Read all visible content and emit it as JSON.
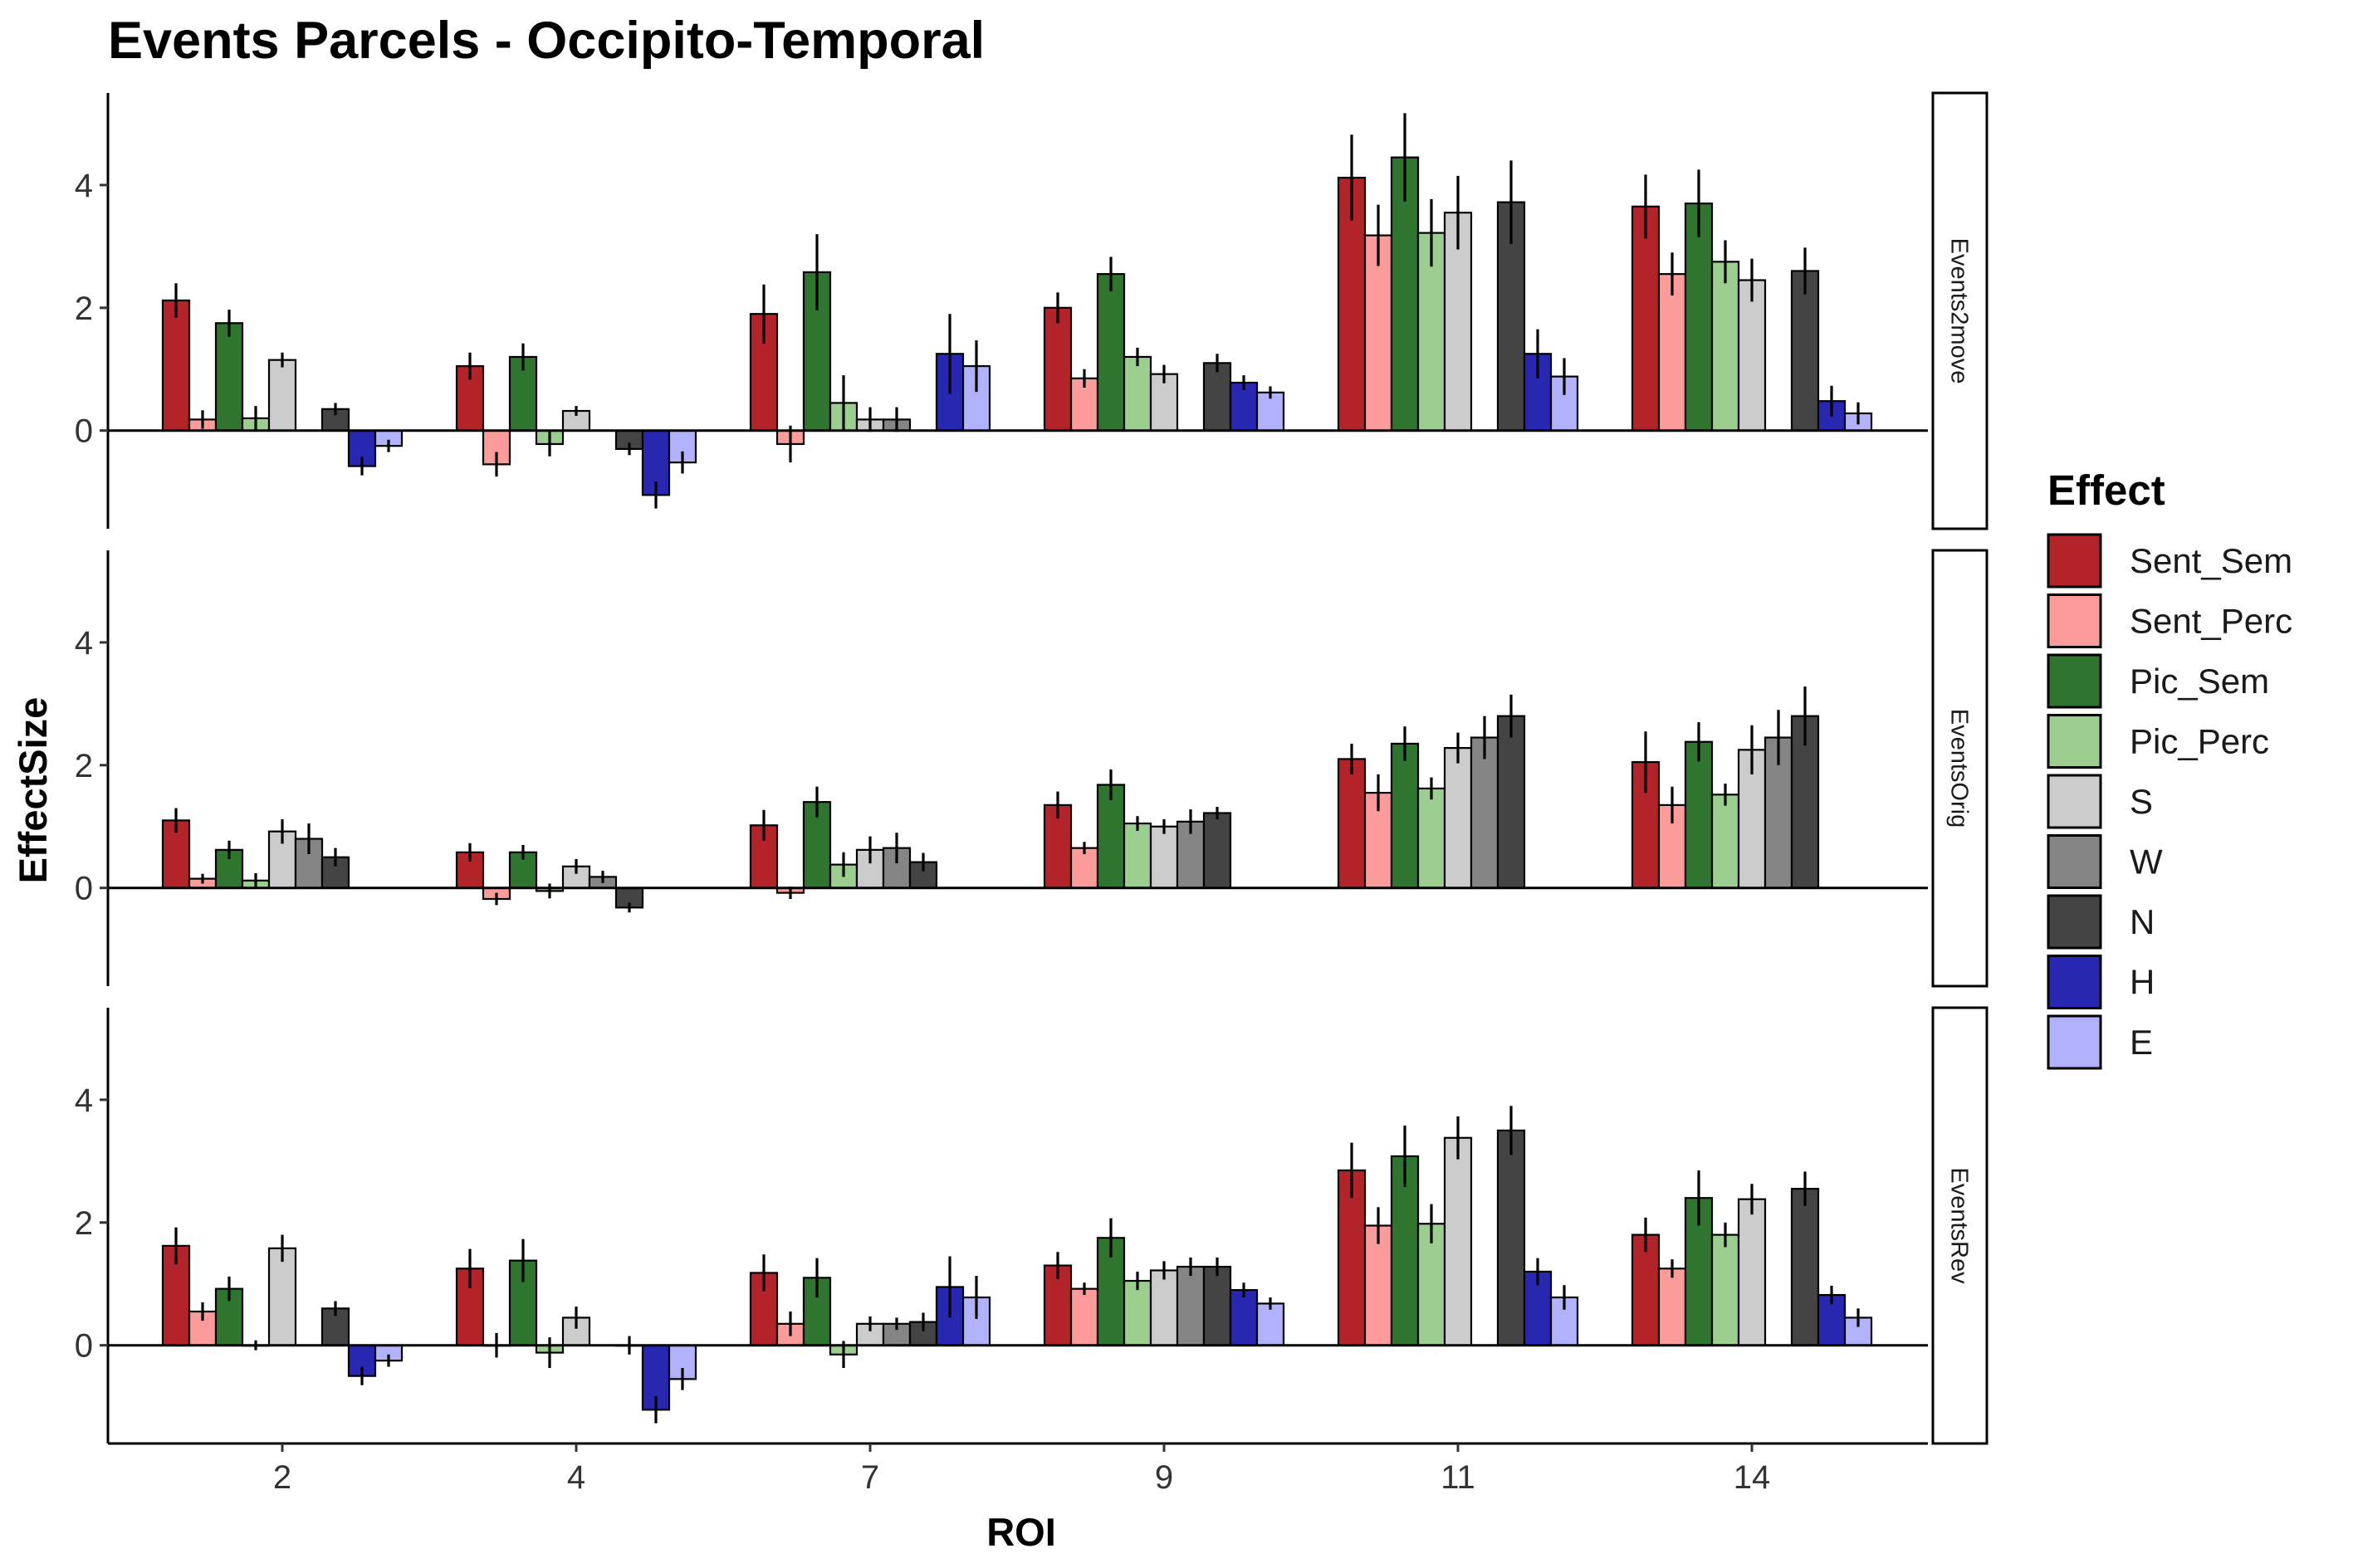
{
  "chart_data": {
    "type": "bar",
    "title": "Events Parcels - Occipito-Temporal",
    "xlabel": "ROI",
    "ylabel": "EffectSize",
    "categories": [
      "2",
      "4",
      "7",
      "9",
      "11",
      "14"
    ],
    "ylim": [
      -1.6,
      5.5
    ],
    "yticks": [
      0,
      2,
      4
    ],
    "legend": {
      "title": "Effect",
      "position": "right",
      "entries": [
        "Sent_Sem",
        "Sent_Perc",
        "Pic_Sem",
        "Pic_Perc",
        "S",
        "W",
        "N",
        "H",
        "E"
      ]
    },
    "series_colors": {
      "Sent_Sem": "#b2232a",
      "Sent_Perc": "#fb9b9a",
      "Pic_Sem": "#2f7530",
      "Pic_Perc": "#9ccf8f",
      "S": "#cccccc",
      "W": "#858585",
      "N": "#444444",
      "H": "#2727b2",
      "E": "#b2b2fc"
    },
    "facets": [
      {
        "label": "Events2move",
        "series": [
          {
            "name": "Sent_Sem",
            "values": [
              2.12,
              1.05,
              1.9,
              2.0,
              4.12,
              3.65
            ],
            "errors": [
              0.28,
              0.22,
              0.48,
              0.25,
              0.7,
              0.52
            ]
          },
          {
            "name": "Sent_Perc",
            "values": [
              0.18,
              -0.55,
              -0.22,
              0.85,
              3.18,
              2.55
            ],
            "errors": [
              0.15,
              0.2,
              0.3,
              0.15,
              0.5,
              0.35
            ]
          },
          {
            "name": "Pic_Sem",
            "values": [
              1.75,
              1.2,
              2.58,
              2.55,
              4.45,
              3.7
            ],
            "errors": [
              0.22,
              0.22,
              0.62,
              0.28,
              0.72,
              0.55
            ]
          },
          {
            "name": "Pic_Perc",
            "values": [
              0.2,
              -0.22,
              0.45,
              1.2,
              3.22,
              2.75
            ],
            "errors": [
              0.2,
              0.2,
              0.45,
              0.15,
              0.55,
              0.35
            ]
          },
          {
            "name": "S",
            "values": [
              1.15,
              0.32,
              0.18,
              0.92,
              3.55,
              2.45
            ],
            "errors": [
              0.12,
              0.08,
              0.2,
              0.15,
              0.6,
              0.35
            ]
          },
          {
            "name": "W",
            "values": [
              0.0,
              0.0,
              0.18,
              0.0,
              0.0,
              0.0
            ],
            "errors": [
              0.0,
              0.0,
              0.2,
              0.0,
              0.0,
              0.0
            ]
          },
          {
            "name": "N",
            "values": [
              0.35,
              -0.3,
              0.0,
              1.1,
              3.72,
              2.6
            ],
            "errors": [
              0.1,
              0.1,
              0.0,
              0.15,
              0.68,
              0.38
            ]
          },
          {
            "name": "H",
            "values": [
              -0.58,
              -1.05,
              1.25,
              0.78,
              1.25,
              0.48
            ],
            "errors": [
              0.15,
              0.22,
              0.65,
              0.12,
              0.4,
              0.25
            ]
          },
          {
            "name": "E",
            "values": [
              -0.25,
              -0.52,
              1.05,
              0.62,
              0.88,
              0.28
            ],
            "errors": [
              0.1,
              0.18,
              0.42,
              0.1,
              0.3,
              0.18
            ]
          }
        ]
      },
      {
        "label": "EventsOrig",
        "series": [
          {
            "name": "Sent_Sem",
            "values": [
              1.1,
              0.58,
              1.02,
              1.35,
              2.1,
              2.05
            ],
            "errors": [
              0.2,
              0.15,
              0.25,
              0.22,
              0.25,
              0.5
            ]
          },
          {
            "name": "Sent_Perc",
            "values": [
              0.15,
              -0.18,
              -0.08,
              0.65,
              1.55,
              1.35
            ],
            "errors": [
              0.08,
              0.1,
              0.1,
              0.1,
              0.3,
              0.3
            ]
          },
          {
            "name": "Pic_Sem",
            "values": [
              0.62,
              0.58,
              1.4,
              1.68,
              2.35,
              2.38
            ],
            "errors": [
              0.15,
              0.12,
              0.25,
              0.25,
              0.28,
              0.32
            ]
          },
          {
            "name": "Pic_Perc",
            "values": [
              0.12,
              -0.05,
              0.38,
              1.05,
              1.62,
              1.52
            ],
            "errors": [
              0.12,
              0.12,
              0.2,
              0.12,
              0.18,
              0.18
            ]
          },
          {
            "name": "S",
            "values": [
              0.92,
              0.35,
              0.62,
              1.0,
              2.28,
              2.25
            ],
            "errors": [
              0.2,
              0.12,
              0.22,
              0.12,
              0.25,
              0.4
            ]
          },
          {
            "name": "W",
            "values": [
              0.8,
              0.18,
              0.65,
              1.08,
              2.45,
              2.45
            ],
            "errors": [
              0.25,
              0.1,
              0.25,
              0.2,
              0.35,
              0.45
            ]
          },
          {
            "name": "N",
            "values": [
              0.5,
              -0.32,
              0.42,
              1.22,
              2.8,
              2.8
            ],
            "errors": [
              0.15,
              0.08,
              0.15,
              0.1,
              0.35,
              0.48
            ]
          },
          {
            "name": "H",
            "values": [
              0.0,
              0.0,
              0.0,
              0.0,
              0.0,
              0.0
            ],
            "errors": [
              0.0,
              0.0,
              0.0,
              0.0,
              0.0,
              0.0
            ]
          },
          {
            "name": "E",
            "values": [
              0.0,
              0.0,
              0.0,
              0.0,
              0.0,
              0.0
            ],
            "errors": [
              0.0,
              0.0,
              0.0,
              0.0,
              0.0,
              0.0
            ]
          }
        ]
      },
      {
        "label": "EventsRev",
        "series": [
          {
            "name": "Sent_Sem",
            "values": [
              1.62,
              1.25,
              1.18,
              1.3,
              2.85,
              1.8
            ],
            "errors": [
              0.3,
              0.32,
              0.3,
              0.22,
              0.45,
              0.28
            ]
          },
          {
            "name": "Sent_Perc",
            "values": [
              0.55,
              0.0,
              0.35,
              0.92,
              1.95,
              1.25
            ],
            "errors": [
              0.15,
              0.2,
              0.2,
              0.1,
              0.3,
              0.15
            ]
          },
          {
            "name": "Pic_Sem",
            "values": [
              0.92,
              1.38,
              1.1,
              1.75,
              3.08,
              2.4
            ],
            "errors": [
              0.2,
              0.35,
              0.32,
              0.32,
              0.5,
              0.45
            ]
          },
          {
            "name": "Pic_Perc",
            "values": [
              0.0,
              -0.12,
              -0.15,
              1.05,
              1.98,
              1.8
            ],
            "errors": [
              0.08,
              0.25,
              0.22,
              0.15,
              0.32,
              0.2
            ]
          },
          {
            "name": "S",
            "values": [
              1.58,
              0.45,
              0.35,
              1.22,
              3.38,
              2.38
            ],
            "errors": [
              0.22,
              0.18,
              0.12,
              0.15,
              0.35,
              0.25
            ]
          },
          {
            "name": "W",
            "values": [
              0.0,
              0.0,
              0.35,
              1.28,
              0.0,
              0.0
            ],
            "errors": [
              0.0,
              0.0,
              0.1,
              0.15,
              0.0,
              0.0
            ]
          },
          {
            "name": "N",
            "values": [
              0.6,
              0.0,
              0.38,
              1.28,
              3.5,
              2.55
            ],
            "errors": [
              0.12,
              0.15,
              0.15,
              0.15,
              0.4,
              0.28
            ]
          },
          {
            "name": "H",
            "values": [
              -0.5,
              -1.05,
              0.95,
              0.9,
              1.2,
              0.82
            ],
            "errors": [
              0.15,
              0.22,
              0.5,
              0.12,
              0.22,
              0.15
            ]
          },
          {
            "name": "E",
            "values": [
              -0.25,
              -0.55,
              0.78,
              0.68,
              0.78,
              0.45
            ],
            "errors": [
              0.1,
              0.18,
              0.35,
              0.1,
              0.2,
              0.15
            ]
          }
        ]
      }
    ]
  }
}
